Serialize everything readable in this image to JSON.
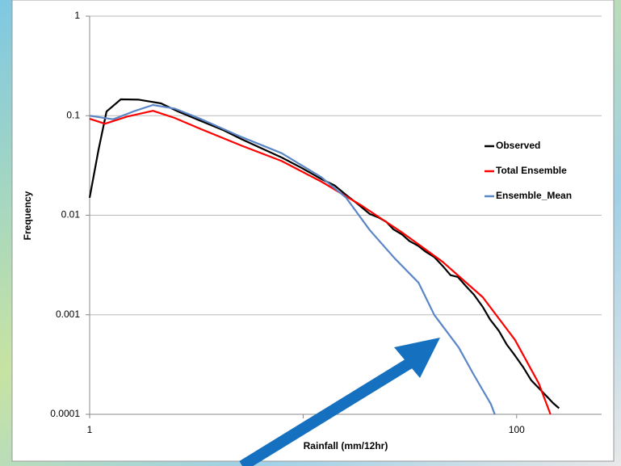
{
  "chart_data": {
    "type": "line",
    "y_label": "Frequency",
    "x_label": "Rainfall (mm/12hr)",
    "xlim": [
      1,
      250
    ],
    "xticks": [
      1,
      10,
      100
    ],
    "log_x": true,
    "ylim": [
      0.0001,
      1
    ],
    "yticks": [
      1,
      0.1,
      0.01,
      0.001,
      0.0001
    ],
    "log_y": true,
    "grid": true,
    "legend": "right",
    "series": [
      {
        "name": "Observed",
        "color": "#000000",
        "x": [
          1,
          1.1,
          1.2,
          1.4,
          1.7,
          2.16,
          2.6,
          3.34,
          4.2,
          5.15,
          6.4,
          7.93,
          9.8,
          12.2,
          14,
          15.9,
          18,
          20.5,
          22.5,
          24.5,
          26.5,
          29.1,
          31.5,
          34.7,
          37.5,
          41.1,
          45,
          49,
          53,
          58.4,
          63,
          69.4,
          75,
          82.5,
          90,
          98.2,
          107,
          117,
          128,
          139,
          148,
          158
        ],
        "values": [
          0.015,
          0.045,
          0.11,
          0.146,
          0.145,
          0.133,
          0.11,
          0.088,
          0.072,
          0.058,
          0.047,
          0.038,
          0.03,
          0.023,
          0.02,
          0.016,
          0.013,
          0.0103,
          0.0095,
          0.0086,
          0.0072,
          0.0064,
          0.0055,
          0.0049,
          0.0043,
          0.0038,
          0.0031,
          0.0025,
          0.0024,
          0.0019,
          0.0016,
          0.0012,
          0.0009,
          0.00069,
          0.0005,
          0.00039,
          0.0003,
          0.00022,
          0.00018,
          0.00015,
          0.00013,
          0.000115
        ]
      },
      {
        "name": "Total Ensemble",
        "color": "#ff0000",
        "x": [
          1,
          1.18,
          1.5,
          1.98,
          2.5,
          3.34,
          5.15,
          7.93,
          12.2,
          18.9,
          29.1,
          45,
          69.4,
          98.2,
          127,
          144
        ],
        "values": [
          0.093,
          0.083,
          0.098,
          0.112,
          0.095,
          0.073,
          0.05,
          0.035,
          0.0217,
          0.0124,
          0.0067,
          0.0034,
          0.0015,
          0.00056,
          0.000204,
          0.0001
        ]
      },
      {
        "name": "Ensemble_Mean",
        "color": "#5b86c5",
        "x": [
          1,
          1.29,
          1.6,
          1.98,
          2.5,
          3.34,
          5.15,
          7.93,
          12.2,
          15.9,
          20.5,
          26.8,
          34.7,
          41.1,
          53.5,
          63,
          75.7,
          79
        ],
        "values": [
          0.1,
          0.092,
          0.11,
          0.128,
          0.118,
          0.092,
          0.061,
          0.042,
          0.024,
          0.015,
          0.0071,
          0.0037,
          0.0021,
          0.001,
          0.00047,
          0.00025,
          0.000127,
          0.0001
        ]
      }
    ]
  }
}
